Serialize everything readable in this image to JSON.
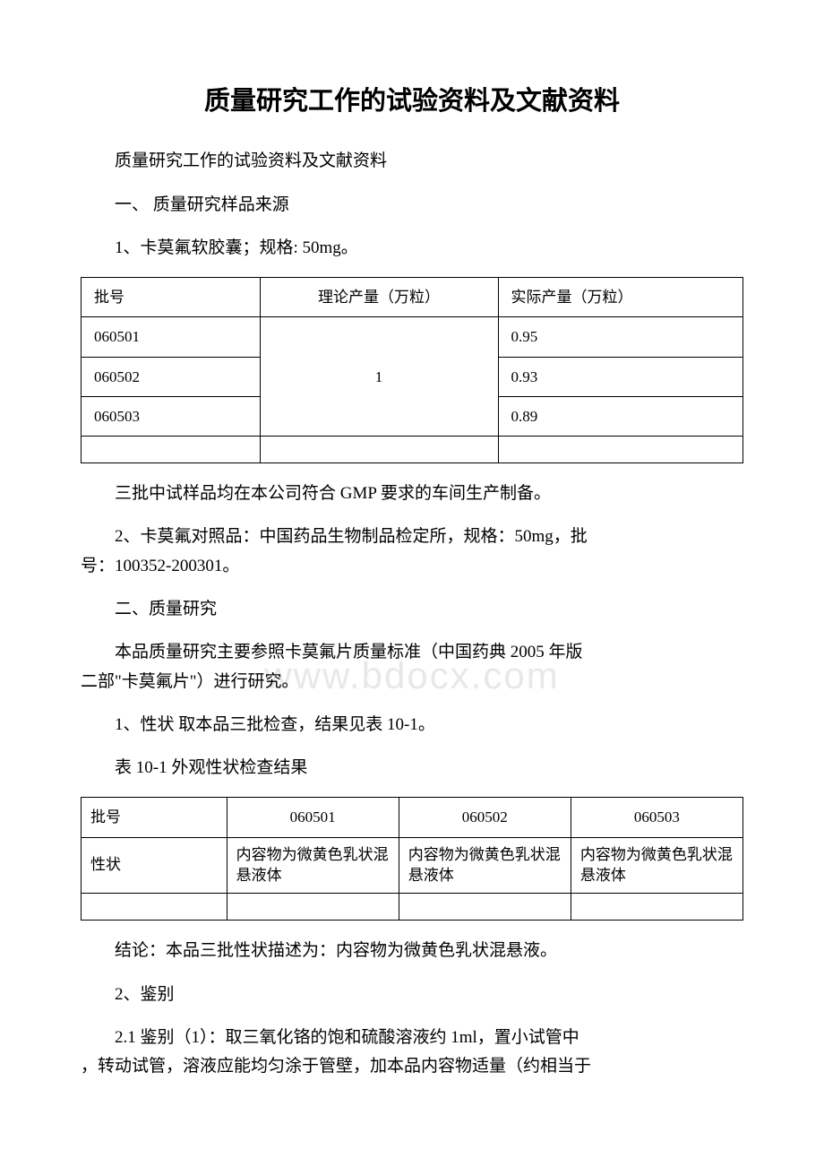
{
  "title": "质量研究工作的试验资料及文献资料",
  "subtitle": "质量研究工作的试验资料及文献资料",
  "section1_heading": "一、 质量研究样品来源",
  "item1_text": "1、卡莫氟软胶囊；规格: 50mg。",
  "table1": {
    "headers": [
      "批号",
      "理论产量（万粒）",
      "实际产量（万粒）"
    ],
    "rows": [
      [
        "060501",
        "",
        "0.95"
      ],
      [
        "060502",
        "1",
        "0.93"
      ],
      [
        "060503",
        "",
        "0.89"
      ]
    ],
    "merged_col2_value": "1"
  },
  "gmp_note": "三批中试样品均在本公司符合 GMP 要求的车间生产制备。",
  "item2_line1": "2、卡莫氟对照品：中国药品生物制品检定所，规格：50mg，批",
  "item2_line2": "号：100352-200301。",
  "section2_heading": "二、质量研究",
  "section2_intro_line1": "本品质量研究主要参照卡莫氟片质量标准（中国药典 2005 年版",
  "section2_intro_line2": "二部\"卡莫氟片\"）进行研究。",
  "item2_1": "1、性状 取本品三批检查，结果见表 10-1。",
  "table2_caption": "表 10-1 外观性状检查结果",
  "table2": {
    "header_row": [
      "批号",
      "060501",
      "060502",
      "060503"
    ],
    "data_row_label": "性状",
    "data_row_cells": [
      "内容物为微黄色乳状混悬液体",
      "内容物为微黄色乳状混悬液体",
      "内容物为微黄色乳状混悬液体"
    ]
  },
  "conclusion_line": "结论：本品三批性状描述为：内容物为微黄色乳状混悬液。",
  "item2_2": "2、鉴别",
  "item2_2_1_line1": "2.1 鉴别（1）：取三氧化铬的饱和硫酸溶液约 1ml，置小试管中",
  "item2_2_1_line2": "，转动试管，溶液应能均匀涂于管壁，加本品内容物适量（约相当于",
  "watermark_text": "www.bdocx.com",
  "colors": {
    "text": "#000000",
    "background": "#ffffff",
    "watermark": "#e8e8e8",
    "border": "#000000"
  },
  "typography": {
    "title_fontsize": 29,
    "body_fontsize": 19,
    "table_fontsize": 17,
    "font_family": "SimSun"
  }
}
